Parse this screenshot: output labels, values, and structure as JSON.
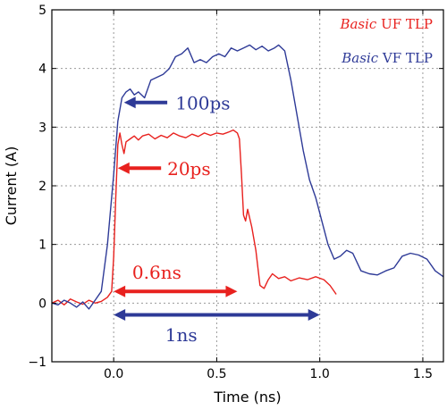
{
  "chart_data": {
    "type": "line",
    "xlabel": "Time (ns)",
    "ylabel": "Current (A)",
    "xlim": [
      -0.3,
      1.6
    ],
    "ylim": [
      -1,
      5
    ],
    "xticks": [
      0.0,
      0.5,
      1.0,
      1.5
    ],
    "xtick_labels": [
      "0.0",
      "0.5",
      "1.0",
      "1.5"
    ],
    "yticks": [
      -1,
      0,
      1,
      2,
      3,
      4,
      5
    ],
    "ytick_labels": [
      "−1",
      "0",
      "1",
      "2",
      "3",
      "4",
      "5"
    ],
    "grid": true,
    "legend_position": "top-right",
    "series": [
      {
        "name_italic": "Basic",
        "name_rest": " UF TLP",
        "color": "#e8211e",
        "x": [
          -0.3,
          -0.27,
          -0.24,
          -0.21,
          -0.18,
          -0.15,
          -0.12,
          -0.09,
          -0.06,
          -0.03,
          -0.01,
          0.0,
          0.01,
          0.02,
          0.03,
          0.04,
          0.05,
          0.06,
          0.08,
          0.1,
          0.12,
          0.14,
          0.17,
          0.2,
          0.23,
          0.26,
          0.29,
          0.32,
          0.35,
          0.38,
          0.41,
          0.44,
          0.47,
          0.5,
          0.53,
          0.56,
          0.58,
          0.6,
          0.61,
          0.62,
          0.63,
          0.64,
          0.65,
          0.67,
          0.69,
          0.71,
          0.73,
          0.75,
          0.77,
          0.8,
          0.83,
          0.86,
          0.9,
          0.94,
          0.98,
          1.02,
          1.05,
          1.08
        ],
        "y": [
          0.0,
          0.05,
          -0.03,
          0.07,
          0.02,
          -0.02,
          0.05,
          0.0,
          0.03,
          0.1,
          0.2,
          0.8,
          1.8,
          2.7,
          2.9,
          2.7,
          2.55,
          2.75,
          2.8,
          2.85,
          2.78,
          2.85,
          2.88,
          2.8,
          2.86,
          2.82,
          2.9,
          2.85,
          2.82,
          2.88,
          2.84,
          2.9,
          2.86,
          2.9,
          2.88,
          2.92,
          2.95,
          2.9,
          2.8,
          2.2,
          1.5,
          1.4,
          1.6,
          1.3,
          0.9,
          0.3,
          0.25,
          0.4,
          0.5,
          0.42,
          0.45,
          0.38,
          0.43,
          0.4,
          0.45,
          0.4,
          0.3,
          0.15
        ]
      },
      {
        "name_italic": "Basic",
        "name_rest": " VF TLP",
        "color": "#2e3a97",
        "x": [
          -0.3,
          -0.27,
          -0.24,
          -0.21,
          -0.18,
          -0.15,
          -0.12,
          -0.09,
          -0.06,
          -0.03,
          0.0,
          0.02,
          0.04,
          0.06,
          0.08,
          0.1,
          0.12,
          0.15,
          0.18,
          0.21,
          0.24,
          0.27,
          0.3,
          0.33,
          0.36,
          0.39,
          0.42,
          0.45,
          0.48,
          0.51,
          0.54,
          0.57,
          0.6,
          0.63,
          0.66,
          0.69,
          0.72,
          0.75,
          0.78,
          0.8,
          0.83,
          0.86,
          0.89,
          0.92,
          0.95,
          0.98,
          1.01,
          1.04,
          1.07,
          1.1,
          1.13,
          1.16,
          1.2,
          1.24,
          1.28,
          1.32,
          1.36,
          1.4,
          1.44,
          1.48,
          1.52,
          1.56,
          1.6
        ],
        "y": [
          0.0,
          -0.03,
          0.05,
          0.0,
          -0.07,
          0.02,
          -0.1,
          0.05,
          0.2,
          1.0,
          2.2,
          3.1,
          3.5,
          3.6,
          3.65,
          3.55,
          3.6,
          3.5,
          3.8,
          3.85,
          3.9,
          4.0,
          4.2,
          4.25,
          4.35,
          4.1,
          4.15,
          4.1,
          4.2,
          4.25,
          4.2,
          4.35,
          4.3,
          4.35,
          4.4,
          4.32,
          4.38,
          4.3,
          4.35,
          4.4,
          4.3,
          3.8,
          3.2,
          2.6,
          2.1,
          1.8,
          1.4,
          1.0,
          0.75,
          0.8,
          0.9,
          0.85,
          0.55,
          0.5,
          0.48,
          0.55,
          0.6,
          0.8,
          0.85,
          0.82,
          0.75,
          0.55,
          0.45
        ]
      }
    ],
    "annotations": [
      {
        "text": "100ps",
        "color": "#2e3a97",
        "x_tail": 0.26,
        "x_head": 0.05,
        "y": 3.42,
        "text_x": 0.3,
        "text_y": 3.3
      },
      {
        "text": "20ps",
        "color": "#e8211e",
        "x_tail": 0.23,
        "x_head": 0.02,
        "y": 2.3,
        "text_x": 0.26,
        "text_y": 2.18
      },
      {
        "text": "0.6ns",
        "color": "#e8211e",
        "x_start": 0.0,
        "x_end": 0.6,
        "y": 0.2,
        "text_x": 0.09,
        "text_y": 0.42,
        "double": true
      },
      {
        "text": "1ns",
        "color": "#2e3a97",
        "x_start": 0.0,
        "x_end": 1.0,
        "y": -0.2,
        "text_x": 0.25,
        "text_y": -0.65,
        "double": true
      }
    ]
  }
}
